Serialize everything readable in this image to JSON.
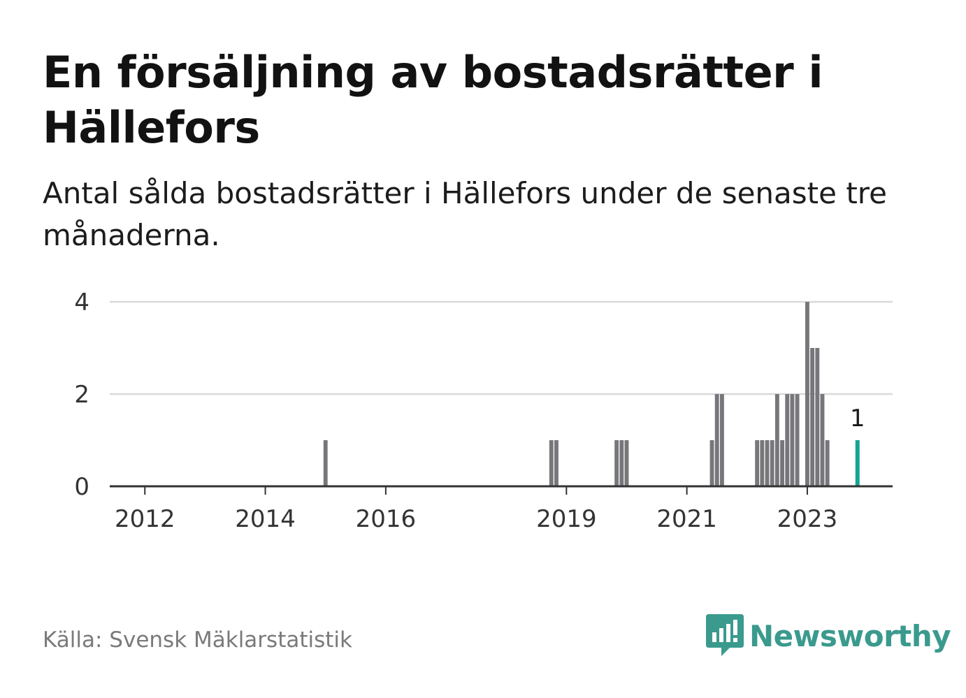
{
  "header": {
    "title": "En försäljning av bostadsrätter i Hällefors",
    "subtitle": "Antal sålda bostadsrätter i Hällefors under de senaste tre månaderna."
  },
  "footer": {
    "source": "Källa: Svensk Mäklarstatistik",
    "brand": "Newsworthy",
    "brand_icon": "bar-chart-speech-bubble-icon"
  },
  "colors": {
    "bar": "#77777b",
    "highlight": "#16a394",
    "grid": "#d9d9d9",
    "axis": "#333333",
    "brand": "#3a9a8d"
  },
  "chart_data": {
    "type": "bar",
    "title": "En försäljning av bostadsrätter i Hällefors",
    "xlabel": "",
    "ylabel": "",
    "ylim": [
      0,
      4
    ],
    "yticks": [
      0,
      2,
      4
    ],
    "xticks": [
      {
        "label": "2012",
        "x": "2012-01"
      },
      {
        "label": "2014",
        "x": "2014-01"
      },
      {
        "label": "2016",
        "x": "2016-01"
      },
      {
        "label": "2019",
        "x": "2019-01"
      },
      {
        "label": "2021",
        "x": "2021-01"
      },
      {
        "label": "2023",
        "x": "2023-01"
      }
    ],
    "x_range": [
      "2011-06",
      "2024-06"
    ],
    "grid": true,
    "legend": "none",
    "series": [
      {
        "values": [
          {
            "x": "2015-01",
            "y": 1
          },
          {
            "x": "2018-10",
            "y": 1
          },
          {
            "x": "2018-11",
            "y": 1
          },
          {
            "x": "2019-11",
            "y": 1
          },
          {
            "x": "2019-12",
            "y": 1
          },
          {
            "x": "2020-01",
            "y": 1
          },
          {
            "x": "2021-06",
            "y": 1
          },
          {
            "x": "2021-07",
            "y": 2
          },
          {
            "x": "2021-08",
            "y": 2
          },
          {
            "x": "2022-03",
            "y": 1
          },
          {
            "x": "2022-04",
            "y": 1
          },
          {
            "x": "2022-05",
            "y": 1
          },
          {
            "x": "2022-06",
            "y": 1
          },
          {
            "x": "2022-07",
            "y": 2
          },
          {
            "x": "2022-08",
            "y": 1
          },
          {
            "x": "2022-09",
            "y": 2
          },
          {
            "x": "2022-10",
            "y": 2
          },
          {
            "x": "2022-11",
            "y": 2
          },
          {
            "x": "2023-01",
            "y": 4
          },
          {
            "x": "2023-02",
            "y": 3
          },
          {
            "x": "2023-03",
            "y": 3
          },
          {
            "x": "2023-04",
            "y": 2
          },
          {
            "x": "2023-05",
            "y": 1
          }
        ]
      }
    ],
    "highlight": {
      "x": "2023-11",
      "y": 1,
      "label": "1"
    }
  }
}
